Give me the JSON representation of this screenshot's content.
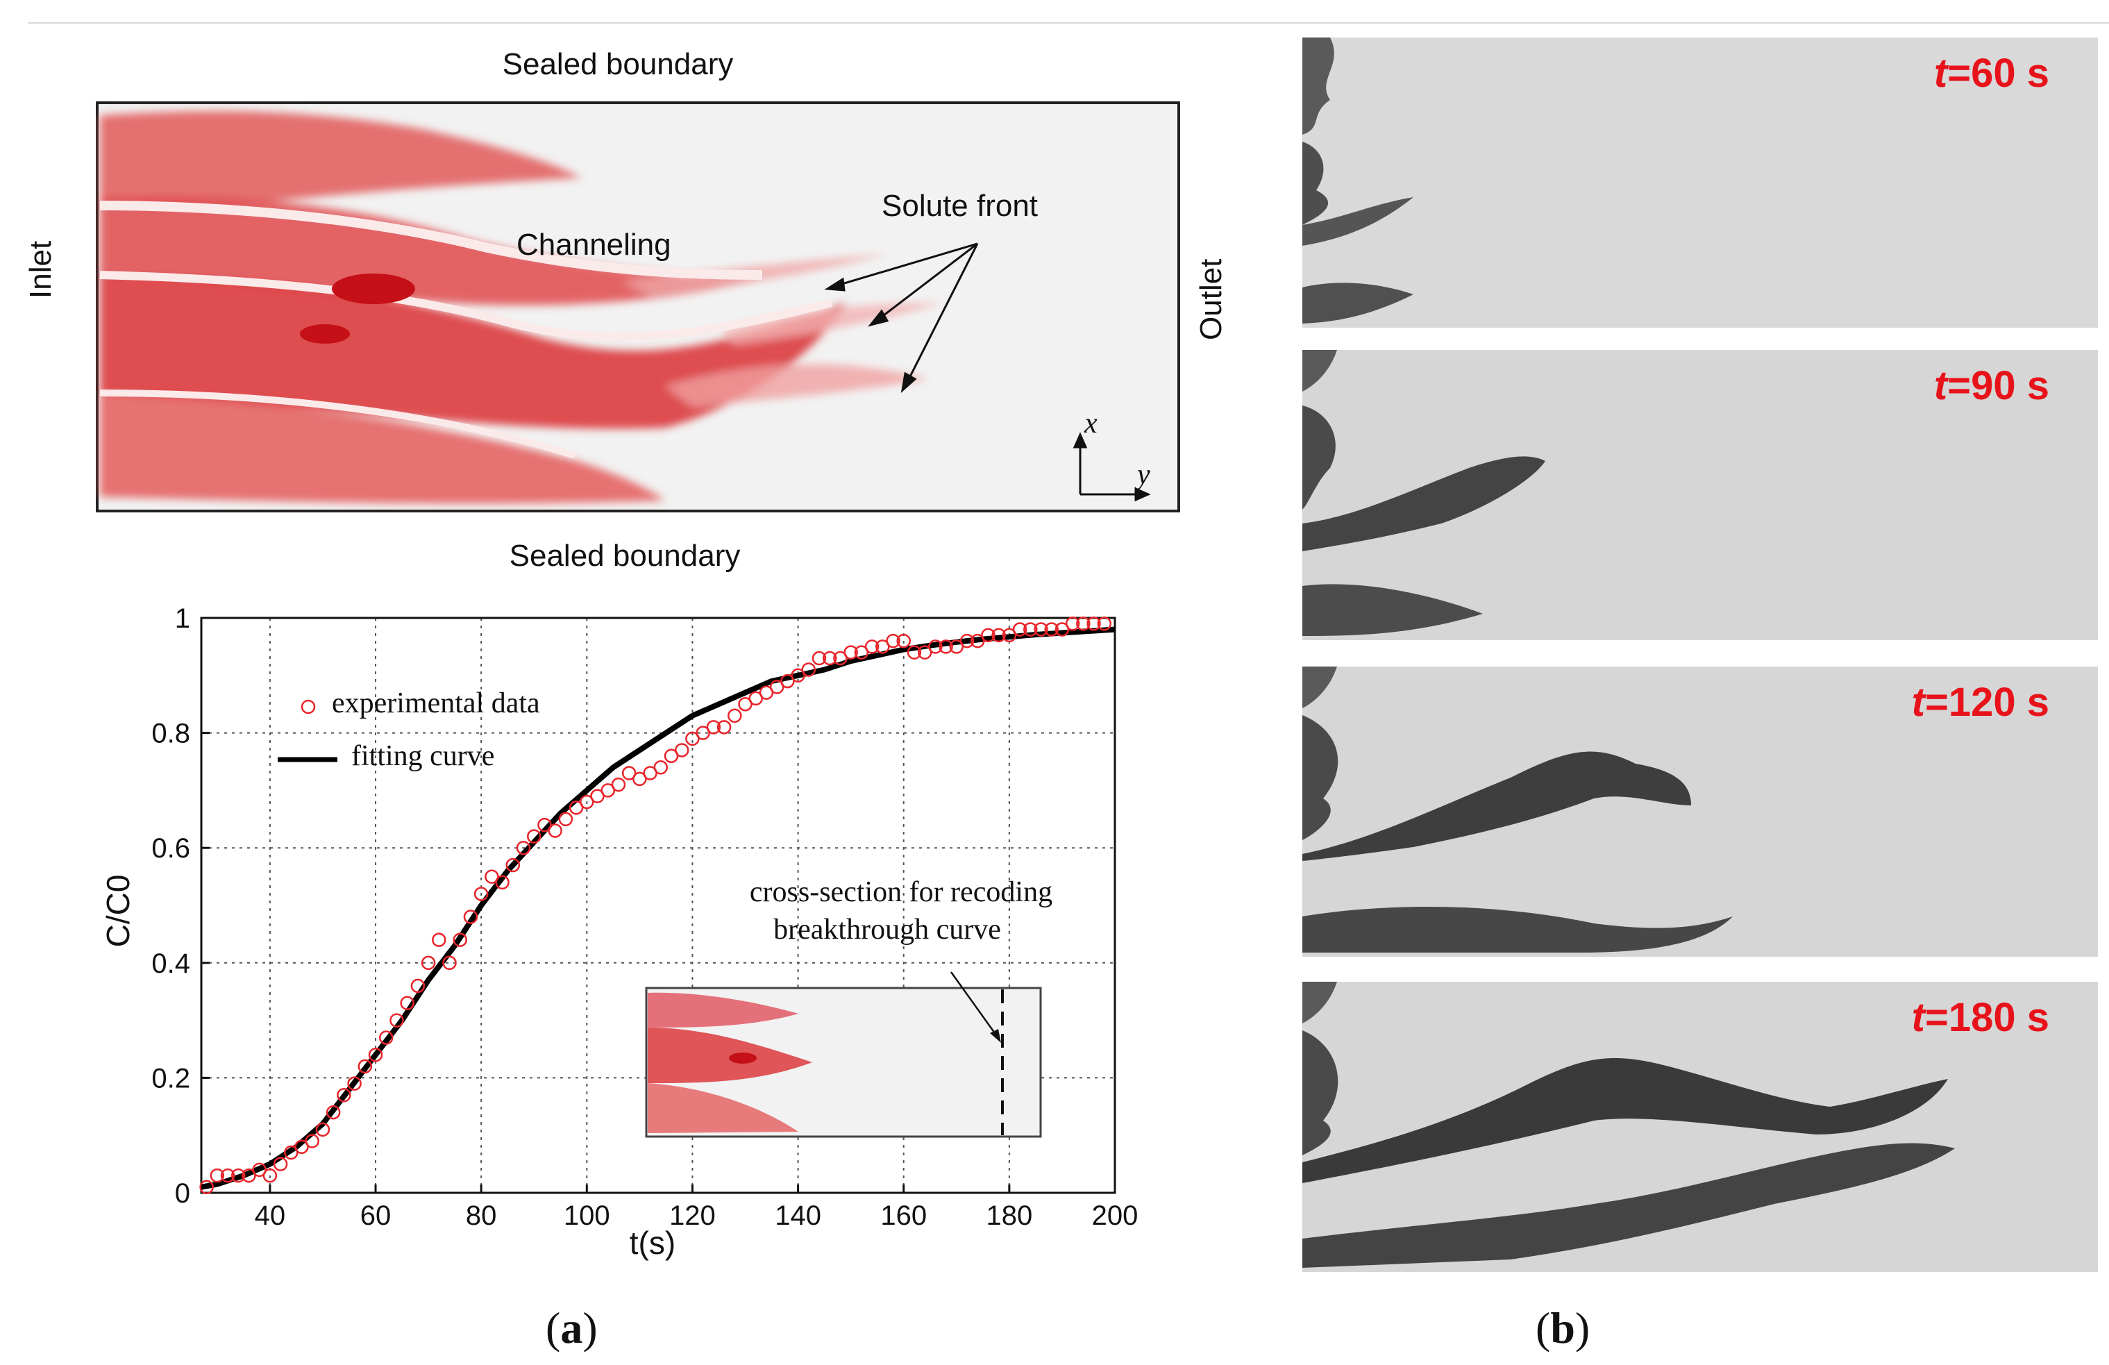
{
  "panel_a": {
    "label_letter": "a",
    "map": {
      "top_label": "Sealed boundary",
      "bottom_label": "Sealed boundary",
      "inlet": "Inlet",
      "outlet": "Outlet",
      "channeling": "Channeling",
      "solute_front": "Solute front",
      "axis_x": "x",
      "axis_y": "y"
    }
  },
  "panel_b": {
    "label_letter": "b",
    "snapshots": [
      {
        "t_label": "t",
        "value": "=60 s"
      },
      {
        "t_label": "t",
        "value": "=90 s"
      },
      {
        "t_label": "t",
        "value": "=120 s"
      },
      {
        "t_label": "t",
        "value": "=180 s"
      }
    ]
  },
  "chart_data": {
    "type": "scatter",
    "title": "",
    "xlabel": "t(s)",
    "ylabel": "C/C0",
    "xlim": [
      27,
      200
    ],
    "ylim": [
      0,
      1
    ],
    "xticks": [
      40,
      60,
      80,
      100,
      120,
      140,
      160,
      180,
      200
    ],
    "yticks": [
      0,
      0.2,
      0.4,
      0.6,
      0.8,
      1
    ],
    "ytick_labels": [
      "0",
      "0.2",
      "0.4",
      "0.6",
      "0.8",
      "1"
    ],
    "grid": true,
    "legend": {
      "position": "top-left",
      "entries": [
        "experimental data",
        "fitting curve"
      ]
    },
    "annotation": {
      "line1": "cross-section for recoding",
      "line2": "breakthrough curve"
    },
    "series": [
      {
        "name": "experimental data",
        "marker": "circle",
        "color": "#e8242a",
        "x": [
          28,
          30,
          32,
          34,
          36,
          38,
          40,
          42,
          44,
          46,
          48,
          50,
          52,
          54,
          56,
          58,
          60,
          62,
          64,
          66,
          68,
          70,
          72,
          74,
          76,
          78,
          80,
          82,
          84,
          86,
          88,
          90,
          92,
          94,
          96,
          98,
          100,
          102,
          104,
          106,
          108,
          110,
          112,
          114,
          116,
          118,
          120,
          122,
          124,
          126,
          128,
          130,
          132,
          134,
          136,
          138,
          140,
          142,
          144,
          146,
          148,
          150,
          152,
          154,
          156,
          158,
          160,
          162,
          164,
          166,
          168,
          170,
          172,
          174,
          176,
          178,
          180,
          182,
          184,
          186,
          188,
          190,
          192,
          194,
          196,
          198
        ],
        "y": [
          0.01,
          0.03,
          0.03,
          0.03,
          0.03,
          0.04,
          0.03,
          0.05,
          0.07,
          0.08,
          0.09,
          0.11,
          0.14,
          0.17,
          0.19,
          0.22,
          0.24,
          0.27,
          0.3,
          0.33,
          0.36,
          0.4,
          0.44,
          0.4,
          0.44,
          0.48,
          0.52,
          0.55,
          0.54,
          0.57,
          0.6,
          0.62,
          0.64,
          0.63,
          0.65,
          0.67,
          0.68,
          0.69,
          0.7,
          0.71,
          0.73,
          0.72,
          0.73,
          0.74,
          0.76,
          0.77,
          0.79,
          0.8,
          0.81,
          0.81,
          0.83,
          0.85,
          0.86,
          0.87,
          0.88,
          0.89,
          0.9,
          0.91,
          0.93,
          0.93,
          0.93,
          0.94,
          0.94,
          0.95,
          0.95,
          0.96,
          0.96,
          0.94,
          0.94,
          0.95,
          0.95,
          0.95,
          0.96,
          0.96,
          0.97,
          0.97,
          0.97,
          0.98,
          0.98,
          0.98,
          0.98,
          0.98,
          0.99,
          0.99,
          0.99,
          0.99
        ]
      },
      {
        "name": "fitting curve",
        "line": "solid",
        "color": "#000000",
        "x": [
          27,
          30,
          35,
          40,
          45,
          50,
          55,
          60,
          65,
          70,
          75,
          80,
          85,
          90,
          95,
          100,
          105,
          110,
          115,
          120,
          125,
          130,
          135,
          140,
          145,
          150,
          155,
          160,
          165,
          170,
          175,
          180,
          185,
          190,
          195,
          200
        ],
        "y": [
          0.01,
          0.015,
          0.03,
          0.05,
          0.08,
          0.12,
          0.18,
          0.24,
          0.3,
          0.37,
          0.43,
          0.5,
          0.56,
          0.61,
          0.66,
          0.7,
          0.74,
          0.77,
          0.8,
          0.83,
          0.85,
          0.87,
          0.89,
          0.9,
          0.91,
          0.925,
          0.935,
          0.945,
          0.952,
          0.958,
          0.963,
          0.967,
          0.971,
          0.974,
          0.977,
          0.98
        ]
      }
    ]
  }
}
